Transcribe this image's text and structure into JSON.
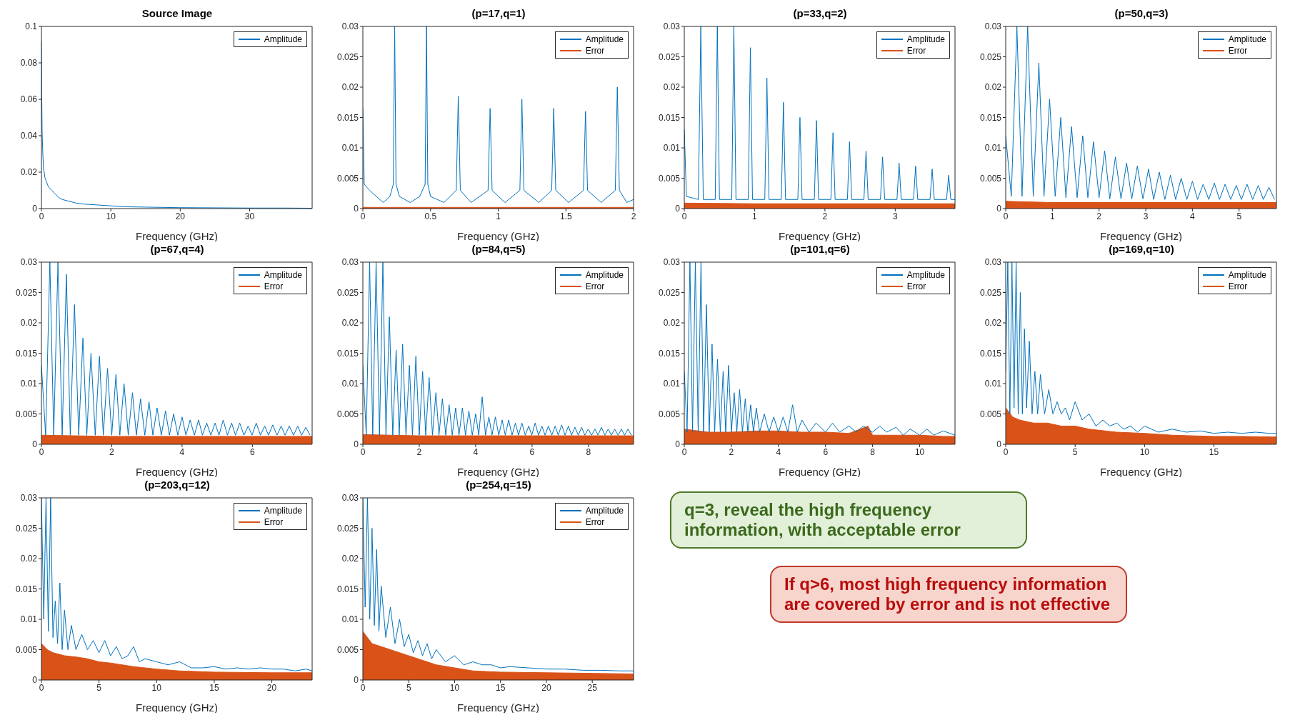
{
  "chart_data": [
    {
      "type": "line",
      "title": "Source Image",
      "xlabel": "Frequency (GHz)",
      "xlim": [
        0,
        39
      ],
      "xticks": [
        0,
        10,
        20,
        30
      ],
      "ylim": [
        0,
        0.1
      ],
      "yticks": [
        0,
        0.02,
        0.04,
        0.06,
        0.08,
        0.1
      ],
      "legend": "top right",
      "series": [
        {
          "name": "Amplitude",
          "color": "#0072bd",
          "x": [
            0,
            0.05,
            0.1,
            0.2,
            0.3,
            0.4,
            0.5,
            0.7,
            1,
            1.5,
            2,
            2.5,
            3,
            4,
            5,
            6,
            8,
            10,
            12,
            15,
            20,
            25,
            30,
            35,
            39
          ],
          "values": [
            0.092,
            0.06,
            0.042,
            0.03,
            0.022,
            0.02,
            0.017,
            0.015,
            0.012,
            0.01,
            0.008,
            0.006,
            0.005,
            0.004,
            0.003,
            0.0025,
            0.002,
            0.0015,
            0.001,
            0.0008,
            0.0005,
            0.0004,
            0.0003,
            0.0003,
            0.0002
          ]
        }
      ]
    },
    {
      "type": "line",
      "title": "(p=17,q=1)",
      "xlabel": "Frequency (GHz)",
      "xlim": [
        0,
        2
      ],
      "xticks": [
        0,
        0.5,
        1,
        1.5,
        2
      ],
      "ylim": [
        0,
        0.03
      ],
      "yticks": [
        0,
        0.005,
        0.01,
        0.015,
        0.02,
        0.025,
        0.03
      ],
      "legend": "top right",
      "series": [
        {
          "name": "Amplitude",
          "color": "#0072bd",
          "x": [
            0,
            0.01,
            0.05,
            0.1,
            0.15,
            0.2,
            0.225,
            0.235,
            0.245,
            0.27,
            0.35,
            0.42,
            0.46,
            0.47,
            0.48,
            0.5,
            0.6,
            0.69,
            0.705,
            0.72,
            0.8,
            0.925,
            0.94,
            0.955,
            1.05,
            1.16,
            1.175,
            1.19,
            1.3,
            1.395,
            1.41,
            1.425,
            1.52,
            1.63,
            1.645,
            1.66,
            1.76,
            1.865,
            1.88,
            1.895,
            1.95,
            2
          ],
          "values": [
            0.0165,
            0.004,
            0.003,
            0.002,
            0.001,
            0.002,
            0.004,
            0.03,
            0.004,
            0.002,
            0.001,
            0.002,
            0.004,
            0.03,
            0.004,
            0.002,
            0.001,
            0.003,
            0.0185,
            0.003,
            0.001,
            0.003,
            0.0165,
            0.003,
            0.001,
            0.003,
            0.018,
            0.003,
            0.001,
            0.003,
            0.0165,
            0.003,
            0.001,
            0.003,
            0.016,
            0.003,
            0.001,
            0.003,
            0.02,
            0.003,
            0.001,
            0.0015
          ]
        },
        {
          "name": "Error",
          "color": "#d95319",
          "type": "area",
          "x": [
            0,
            2
          ],
          "values": [
            0.0002,
            0.0002
          ]
        }
      ]
    },
    {
      "type": "line",
      "title": "(p=33,q=2)",
      "xlabel": "Frequency (GHz)",
      "xlim": [
        0,
        3.85
      ],
      "xticks": [
        0,
        1,
        2,
        3
      ],
      "ylim": [
        0,
        0.03
      ],
      "yticks": [
        0,
        0.005,
        0.01,
        0.015,
        0.02,
        0.025,
        0.03
      ],
      "legend": "top right",
      "series": [
        {
          "name": "Amplitude",
          "color": "#0072bd",
          "x": [
            0,
            0.03,
            0.2,
            0.235,
            0.27,
            0.44,
            0.47,
            0.5,
            0.675,
            0.705,
            0.735,
            0.91,
            0.94,
            0.97,
            1.145,
            1.175,
            1.205,
            1.38,
            1.41,
            1.44,
            1.615,
            1.645,
            1.675,
            1.85,
            1.88,
            1.91,
            2.085,
            2.115,
            2.145,
            2.32,
            2.35,
            2.38,
            2.555,
            2.585,
            2.615,
            2.79,
            2.82,
            2.85,
            3.025,
            3.055,
            3.085,
            3.26,
            3.29,
            3.32,
            3.495,
            3.525,
            3.555,
            3.73,
            3.76,
            3.79,
            3.85
          ],
          "values": [
            0.013,
            0.002,
            0.0015,
            0.03,
            0.0015,
            0.0015,
            0.03,
            0.0015,
            0.0015,
            0.03,
            0.0015,
            0.0015,
            0.0265,
            0.0015,
            0.0015,
            0.0215,
            0.0015,
            0.0015,
            0.0175,
            0.0015,
            0.0015,
            0.015,
            0.0015,
            0.0015,
            0.0145,
            0.0015,
            0.0015,
            0.0125,
            0.0015,
            0.0015,
            0.011,
            0.0015,
            0.0015,
            0.0095,
            0.0015,
            0.0015,
            0.0085,
            0.0015,
            0.0015,
            0.0075,
            0.0015,
            0.0015,
            0.007,
            0.0015,
            0.0015,
            0.0065,
            0.0015,
            0.0015,
            0.0055,
            0.0015,
            0.0015
          ]
        },
        {
          "name": "Error",
          "color": "#d95319",
          "type": "area",
          "x": [
            0,
            1,
            2,
            3,
            3.85
          ],
          "values": [
            0.0009,
            0.0008,
            0.0008,
            0.0008,
            0.0008
          ]
        }
      ]
    },
    {
      "type": "line",
      "title": "(p=50,q=3)",
      "xlabel": "Frequency (GHz)",
      "xlim": [
        0,
        5.8
      ],
      "xticks": [
        0,
        1,
        2,
        3,
        4,
        5
      ],
      "ylim": [
        0,
        0.03
      ],
      "yticks": [
        0,
        0.005,
        0.01,
        0.015,
        0.02,
        0.025,
        0.03
      ],
      "legend": "top right",
      "annotations": [
        "q=3, reveal the high frequency information, with acceptable error"
      ],
      "series": [
        {
          "name": "Amplitude",
          "color": "#0072bd",
          "x": [
            0,
            0.12,
            0.24,
            0.35,
            0.47,
            0.59,
            0.71,
            0.82,
            0.94,
            1.06,
            1.18,
            1.29,
            1.41,
            1.53,
            1.65,
            1.76,
            1.88,
            2,
            2.12,
            2.23,
            2.35,
            2.47,
            2.59,
            2.7,
            2.82,
            2.94,
            3.06,
            3.17,
            3.29,
            3.41,
            3.53,
            3.64,
            3.76,
            3.88,
            4,
            4.11,
            4.23,
            4.35,
            4.47,
            4.58,
            4.7,
            4.82,
            4.94,
            5.05,
            5.17,
            5.29,
            5.41,
            5.52,
            5.64,
            5.76
          ],
          "values": [
            0.012,
            0.002,
            0.03,
            0.002,
            0.03,
            0.002,
            0.024,
            0.002,
            0.018,
            0.002,
            0.015,
            0.0018,
            0.0135,
            0.0018,
            0.012,
            0.0018,
            0.011,
            0.0018,
            0.0095,
            0.0016,
            0.0085,
            0.0016,
            0.0075,
            0.0016,
            0.007,
            0.0016,
            0.0065,
            0.0015,
            0.006,
            0.0015,
            0.0055,
            0.0015,
            0.005,
            0.0015,
            0.0045,
            0.0015,
            0.004,
            0.0015,
            0.0042,
            0.0015,
            0.004,
            0.0015,
            0.0038,
            0.0015,
            0.004,
            0.0015,
            0.0038,
            0.0015,
            0.0035,
            0.0015
          ]
        },
        {
          "name": "Error",
          "color": "#d95319",
          "type": "area",
          "x": [
            0,
            1,
            2,
            3,
            4,
            5,
            5.8
          ],
          "values": [
            0.0012,
            0.001,
            0.001,
            0.001,
            0.001,
            0.001,
            0.001
          ]
        }
      ]
    },
    {
      "type": "line",
      "title": "(p=67,q=4)",
      "xlabel": "Frequency (GHz)",
      "xlim": [
        0,
        7.7
      ],
      "xticks": [
        0,
        2,
        4,
        6
      ],
      "ylim": [
        0,
        0.03
      ],
      "yticks": [
        0,
        0.005,
        0.01,
        0.015,
        0.02,
        0.025,
        0.03
      ],
      "legend": "top right",
      "series": [
        {
          "name": "Amplitude",
          "color": "#0072bd",
          "x": [
            0,
            0.12,
            0.24,
            0.35,
            0.47,
            0.59,
            0.71,
            0.82,
            0.94,
            1.06,
            1.18,
            1.29,
            1.41,
            1.53,
            1.65,
            1.76,
            1.88,
            2,
            2.12,
            2.23,
            2.35,
            2.47,
            2.59,
            2.7,
            2.82,
            2.94,
            3.06,
            3.17,
            3.29,
            3.41,
            3.53,
            3.64,
            3.76,
            3.88,
            4,
            4.11,
            4.23,
            4.35,
            4.47,
            4.58,
            4.7,
            4.82,
            4.94,
            5.05,
            5.17,
            5.29,
            5.41,
            5.52,
            5.64,
            5.76,
            5.88,
            5.99,
            6.11,
            6.23,
            6.35,
            6.46,
            6.58,
            6.7,
            6.82,
            6.93,
            7.05,
            7.17,
            7.29,
            7.4,
            7.52,
            7.64
          ],
          "values": [
            0.013,
            0.0015,
            0.03,
            0.0015,
            0.03,
            0.0015,
            0.028,
            0.0015,
            0.023,
            0.0015,
            0.0175,
            0.0015,
            0.015,
            0.0015,
            0.0145,
            0.0015,
            0.0125,
            0.0015,
            0.0115,
            0.0015,
            0.01,
            0.0015,
            0.0085,
            0.0015,
            0.0075,
            0.0015,
            0.007,
            0.0015,
            0.006,
            0.0015,
            0.0055,
            0.0015,
            0.005,
            0.0015,
            0.0045,
            0.0015,
            0.004,
            0.0015,
            0.004,
            0.0015,
            0.0035,
            0.0015,
            0.0035,
            0.0015,
            0.004,
            0.0015,
            0.0035,
            0.0015,
            0.0035,
            0.0015,
            0.003,
            0.0015,
            0.0035,
            0.0015,
            0.003,
            0.0015,
            0.0032,
            0.0015,
            0.003,
            0.0015,
            0.003,
            0.0015,
            0.003,
            0.0015,
            0.0028,
            0.0015
          ]
        },
        {
          "name": "Error",
          "color": "#d95319",
          "type": "area",
          "x": [
            0,
            2,
            4,
            6,
            7.7
          ],
          "values": [
            0.0015,
            0.0013,
            0.0013,
            0.0013,
            0.0013
          ]
        }
      ]
    },
    {
      "type": "line",
      "title": "(p=84,q=5)",
      "xlabel": "Frequency (GHz)",
      "xlim": [
        0,
        9.6
      ],
      "xticks": [
        0,
        2,
        4,
        6,
        8
      ],
      "ylim": [
        0,
        0.03
      ],
      "yticks": [
        0,
        0.005,
        0.01,
        0.015,
        0.02,
        0.025,
        0.03
      ],
      "legend": "top right",
      "series": [
        {
          "name": "Amplitude",
          "color": "#0072bd",
          "x": [
            0,
            0.12,
            0.24,
            0.35,
            0.47,
            0.59,
            0.71,
            0.82,
            0.94,
            1.06,
            1.18,
            1.29,
            1.41,
            1.53,
            1.65,
            1.76,
            1.88,
            2,
            2.12,
            2.23,
            2.35,
            2.47,
            2.59,
            2.7,
            2.82,
            2.94,
            3.06,
            3.17,
            3.29,
            3.41,
            3.53,
            3.64,
            3.76,
            3.88,
            4,
            4.11,
            4.23,
            4.35,
            4.47,
            4.58,
            4.7,
            4.82,
            4.94,
            5.05,
            5.17,
            5.29,
            5.41,
            5.52,
            5.64,
            5.76,
            5.88,
            5.99,
            6.11,
            6.23,
            6.35,
            6.46,
            6.58,
            6.7,
            6.82,
            6.93,
            7.05,
            7.17,
            7.29,
            7.4,
            7.52,
            7.64,
            7.76,
            7.87,
            7.99,
            8.11,
            8.23,
            8.34,
            8.46,
            8.58,
            8.7,
            8.81,
            8.93,
            9.05,
            9.17,
            9.28,
            9.4,
            9.52
          ],
          "values": [
            0.013,
            0.0015,
            0.03,
            0.0015,
            0.03,
            0.0015,
            0.03,
            0.0015,
            0.021,
            0.0015,
            0.0155,
            0.0015,
            0.0165,
            0.0015,
            0.013,
            0.0015,
            0.0145,
            0.0015,
            0.012,
            0.0015,
            0.011,
            0.0015,
            0.0085,
            0.0015,
            0.0075,
            0.0015,
            0.0065,
            0.0015,
            0.006,
            0.0015,
            0.006,
            0.0015,
            0.0055,
            0.0015,
            0.005,
            0.0015,
            0.0078,
            0.0015,
            0.0045,
            0.0015,
            0.0045,
            0.0015,
            0.004,
            0.0015,
            0.004,
            0.0015,
            0.0035,
            0.0015,
            0.0035,
            0.0015,
            0.003,
            0.0015,
            0.0035,
            0.0015,
            0.003,
            0.0015,
            0.003,
            0.0015,
            0.003,
            0.0015,
            0.0032,
            0.0015,
            0.003,
            0.0015,
            0.0028,
            0.0015,
            0.0028,
            0.0015,
            0.0025,
            0.0015,
            0.0025,
            0.0015,
            0.0028,
            0.0015,
            0.0025,
            0.0015,
            0.0025,
            0.0015,
            0.0025,
            0.0015,
            0.0025,
            0.0015
          ]
        },
        {
          "name": "Error",
          "color": "#d95319",
          "type": "area",
          "x": [
            0,
            2,
            4,
            6,
            8,
            9.6
          ],
          "values": [
            0.0016,
            0.0014,
            0.0014,
            0.0014,
            0.0014,
            0.0014
          ]
        }
      ]
    },
    {
      "type": "line",
      "title": "(p=101,q=6)",
      "xlabel": "Frequency (GHz)",
      "xlim": [
        0,
        11.5
      ],
      "xticks": [
        0,
        2,
        4,
        6,
        8,
        10
      ],
      "ylim": [
        0,
        0.03
      ],
      "yticks": [
        0,
        0.005,
        0.01,
        0.015,
        0.02,
        0.025,
        0.03
      ],
      "legend": "top right",
      "annotations": [
        "If q>6, most high frequency information are covered by error and is not effective"
      ],
      "series": [
        {
          "name": "Amplitude",
          "color": "#0072bd",
          "x": [
            0,
            0.12,
            0.24,
            0.35,
            0.47,
            0.59,
            0.71,
            0.82,
            0.94,
            1.06,
            1.18,
            1.29,
            1.41,
            1.53,
            1.65,
            1.76,
            1.88,
            2,
            2.12,
            2.23,
            2.35,
            2.47,
            2.59,
            2.7,
            2.82,
            2.94,
            3.06,
            3.2,
            3.4,
            3.6,
            3.8,
            4,
            4.2,
            4.4,
            4.6,
            4.8,
            5,
            5.3,
            5.6,
            6,
            6.3,
            6.6,
            7,
            7.3,
            7.6,
            8,
            8.3,
            8.6,
            9,
            9.3,
            9.6,
            10,
            10.3,
            10.6,
            11,
            11.5
          ],
          "values": [
            0.012,
            0.002,
            0.03,
            0.002,
            0.03,
            0.002,
            0.03,
            0.002,
            0.023,
            0.002,
            0.0165,
            0.002,
            0.014,
            0.002,
            0.012,
            0.002,
            0.013,
            0.002,
            0.0085,
            0.002,
            0.009,
            0.002,
            0.0075,
            0.002,
            0.0065,
            0.002,
            0.006,
            0.002,
            0.005,
            0.002,
            0.0045,
            0.002,
            0.0045,
            0.002,
            0.0065,
            0.002,
            0.004,
            0.002,
            0.0035,
            0.002,
            0.0035,
            0.002,
            0.003,
            0.002,
            0.003,
            0.002,
            0.003,
            0.002,
            0.0028,
            0.0015,
            0.0025,
            0.0015,
            0.0025,
            0.0015,
            0.0022,
            0.0015
          ]
        },
        {
          "name": "Error",
          "color": "#d95319",
          "type": "area",
          "x": [
            0,
            1,
            2,
            3,
            4,
            5,
            6,
            7,
            7.8,
            8,
            9,
            10,
            11,
            11.5
          ],
          "values": [
            0.0025,
            0.002,
            0.002,
            0.0022,
            0.0022,
            0.002,
            0.002,
            0.0018,
            0.003,
            0.0015,
            0.0015,
            0.0015,
            0.0013,
            0.0013
          ]
        }
      ]
    },
    {
      "type": "line",
      "title": "(p=169,q=10)",
      "xlabel": "Frequency (GHz)",
      "xlim": [
        0,
        19.5
      ],
      "xticks": [
        0,
        5,
        10,
        15
      ],
      "ylim": [
        0,
        0.03
      ],
      "yticks": [
        0,
        0.005,
        0.01,
        0.015,
        0.02,
        0.025,
        0.03
      ],
      "legend": "top right",
      "series": [
        {
          "name": "Amplitude",
          "color": "#0072bd",
          "x": [
            0,
            0.15,
            0.3,
            0.45,
            0.6,
            0.75,
            0.9,
            1.05,
            1.2,
            1.35,
            1.5,
            1.7,
            1.9,
            2.1,
            2.3,
            2.5,
            2.8,
            3.1,
            3.4,
            3.7,
            4,
            4.3,
            4.6,
            5,
            5.5,
            6,
            6.5,
            7,
            7.5,
            8,
            8.5,
            9,
            9.5,
            10,
            11,
            12,
            13,
            14,
            15,
            16,
            17,
            18,
            19,
            19.5
          ],
          "values": [
            0.012,
            0.03,
            0.005,
            0.03,
            0.006,
            0.03,
            0.005,
            0.025,
            0.005,
            0.019,
            0.006,
            0.017,
            0.005,
            0.012,
            0.005,
            0.0115,
            0.005,
            0.009,
            0.005,
            0.007,
            0.005,
            0.006,
            0.004,
            0.007,
            0.004,
            0.005,
            0.003,
            0.004,
            0.003,
            0.0035,
            0.0025,
            0.003,
            0.002,
            0.003,
            0.002,
            0.0025,
            0.002,
            0.0022,
            0.0018,
            0.002,
            0.0018,
            0.002,
            0.0018,
            0.0018
          ]
        },
        {
          "name": "Error",
          "color": "#d95319",
          "type": "area",
          "x": [
            0,
            0.5,
            1,
            2,
            3,
            4,
            5,
            6,
            8,
            10,
            12,
            15,
            17,
            19.5
          ],
          "values": [
            0.006,
            0.0045,
            0.004,
            0.0035,
            0.0035,
            0.003,
            0.003,
            0.0025,
            0.002,
            0.0018,
            0.0015,
            0.0013,
            0.0013,
            0.0012
          ]
        }
      ]
    },
    {
      "type": "line",
      "title": "(p=203,q=12)",
      "xlabel": "Frequency (GHz)",
      "xlim": [
        0,
        23.5
      ],
      "xticks": [
        0,
        5,
        10,
        15,
        20
      ],
      "ylim": [
        0,
        0.03
      ],
      "yticks": [
        0,
        0.005,
        0.01,
        0.015,
        0.02,
        0.025,
        0.03
      ],
      "legend": "top right",
      "series": [
        {
          "name": "Amplitude",
          "color": "#0072bd",
          "x": [
            0,
            0.2,
            0.4,
            0.6,
            0.8,
            1,
            1.2,
            1.4,
            1.6,
            1.8,
            2,
            2.3,
            2.6,
            3,
            3.5,
            4,
            4.5,
            5,
            5.5,
            6,
            6.5,
            7,
            7.5,
            8,
            8.5,
            9,
            10,
            11,
            12,
            13,
            14,
            15,
            16,
            17,
            18,
            19,
            20,
            21,
            22,
            23,
            23.5
          ],
          "values": [
            0.03,
            0.01,
            0.03,
            0.008,
            0.03,
            0.007,
            0.013,
            0.006,
            0.016,
            0.005,
            0.0115,
            0.005,
            0.009,
            0.005,
            0.0075,
            0.005,
            0.0065,
            0.0045,
            0.0065,
            0.004,
            0.0055,
            0.0035,
            0.004,
            0.0055,
            0.003,
            0.0035,
            0.003,
            0.0025,
            0.003,
            0.002,
            0.002,
            0.0022,
            0.0018,
            0.002,
            0.0018,
            0.002,
            0.0018,
            0.0018,
            0.0015,
            0.0018,
            0.0015
          ]
        },
        {
          "name": "Error",
          "color": "#d95319",
          "type": "area",
          "x": [
            0,
            0.5,
            1,
            2,
            3,
            4,
            5,
            6,
            8,
            10,
            12,
            15,
            20,
            23.5
          ],
          "values": [
            0.006,
            0.005,
            0.0045,
            0.004,
            0.0038,
            0.0035,
            0.003,
            0.0028,
            0.0022,
            0.0018,
            0.0015,
            0.0013,
            0.0012,
            0.0012
          ]
        }
      ]
    },
    {
      "type": "line",
      "title": "(p=254,q=15)",
      "xlabel": "Frequency (GHz)",
      "xlim": [
        0,
        29.5
      ],
      "xticks": [
        0,
        5,
        10,
        15,
        20,
        25
      ],
      "ylim": [
        0,
        0.03
      ],
      "yticks": [
        0,
        0.005,
        0.01,
        0.015,
        0.02,
        0.025,
        0.03
      ],
      "legend": "top right",
      "series": [
        {
          "name": "Amplitude",
          "color": "#0072bd",
          "x": [
            0,
            0.25,
            0.5,
            0.75,
            1,
            1.25,
            1.5,
            1.75,
            2,
            2.5,
            3,
            3.5,
            4,
            4.5,
            5,
            5.5,
            6,
            6.5,
            7,
            7.5,
            8,
            9,
            10,
            11,
            12,
            13,
            14,
            15,
            16,
            18,
            20,
            22,
            24,
            26,
            28,
            29.5
          ],
          "values": [
            0.03,
            0.012,
            0.03,
            0.01,
            0.025,
            0.009,
            0.0215,
            0.008,
            0.0155,
            0.007,
            0.012,
            0.006,
            0.01,
            0.0055,
            0.0075,
            0.0045,
            0.0065,
            0.004,
            0.006,
            0.0035,
            0.005,
            0.003,
            0.004,
            0.0025,
            0.003,
            0.0025,
            0.0025,
            0.002,
            0.0022,
            0.002,
            0.0018,
            0.0018,
            0.0016,
            0.0016,
            0.0015,
            0.0015
          ]
        },
        {
          "name": "Error",
          "color": "#d95319",
          "type": "area",
          "x": [
            0,
            0.5,
            1,
            2,
            3,
            4,
            5,
            6,
            7,
            8,
            10,
            12,
            15,
            20,
            25,
            29.5
          ],
          "values": [
            0.008,
            0.007,
            0.006,
            0.0055,
            0.005,
            0.0045,
            0.004,
            0.0035,
            0.003,
            0.0025,
            0.002,
            0.0015,
            0.0013,
            0.0012,
            0.0011,
            0.001
          ]
        }
      ]
    }
  ]
}
